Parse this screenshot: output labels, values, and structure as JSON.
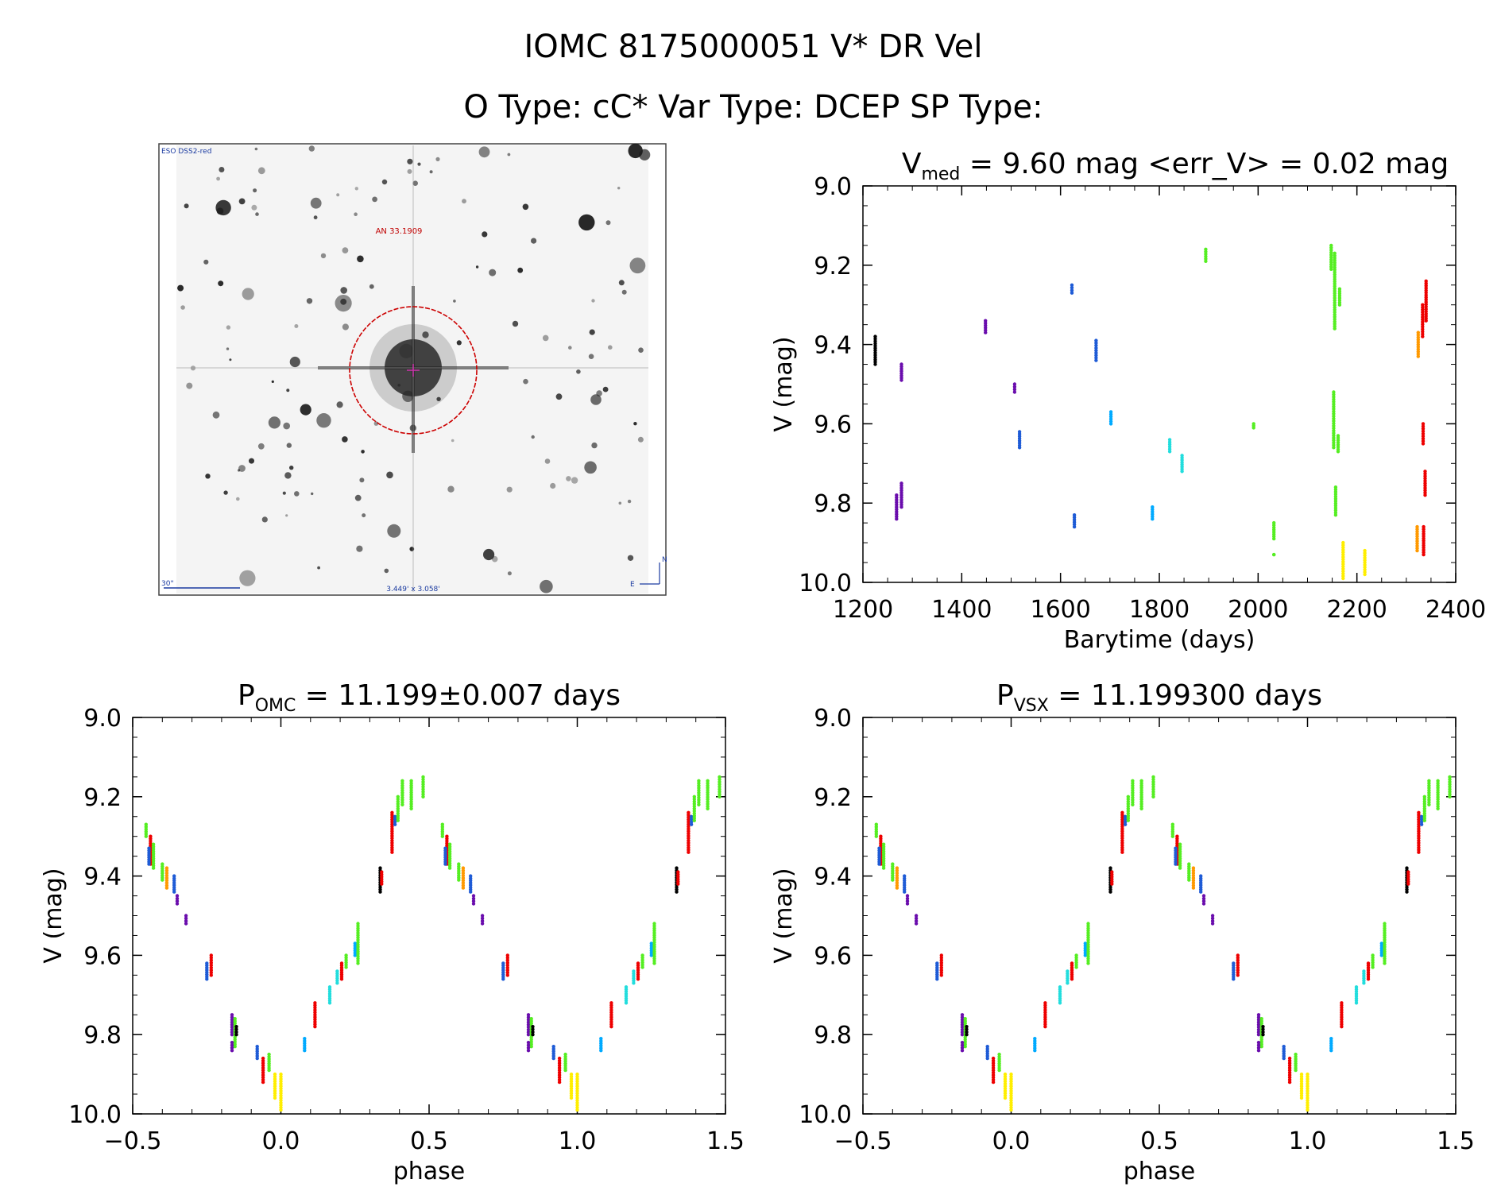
{
  "header": {
    "title": "IOMC 8175000051   V* DR Vel",
    "subtitle": "O Type: cC*  Var Type: DCEP  SP Type:"
  },
  "finder": {
    "survey_label": "ESO DSS2-red",
    "scale_label": "30\"",
    "fov_label": "3.449' x 3.058'",
    "object_label": "AN 33.1909",
    "north_label": "N",
    "east_label": "E"
  },
  "colors": {
    "palette": [
      "#000000",
      "#6a0dad",
      "#1e5bd6",
      "#00aaff",
      "#22dddd",
      "#55ee22",
      "#ee0000",
      "#ff9900",
      "#ffee00"
    ],
    "reticle": "#cc0000"
  },
  "chart_data": [
    {
      "id": "lightcurve",
      "type": "scatter",
      "title_main": "V",
      "title_sub": "med",
      "title_rest": " = 9.60 mag <err_V> = 0.02 mag",
      "xlabel": "Barytime (days)",
      "ylabel": "V (mag)",
      "xlim": [
        1200,
        2400
      ],
      "ylim": [
        10.0,
        9.0
      ],
      "xticks": [
        "1200",
        "1400",
        "1600",
        "1800",
        "2000",
        "2200",
        "2400"
      ],
      "yticks": [
        "9.0",
        "9.2",
        "9.4",
        "9.6",
        "9.8",
        "10.0"
      ],
      "groups": [
        {
          "x": 1225,
          "y": [
            9.38,
            9.45
          ],
          "color": 0
        },
        {
          "x": 1268,
          "y": [
            9.78,
            9.84
          ],
          "color": 1
        },
        {
          "x": 1278,
          "y": [
            9.45,
            9.49
          ],
          "color": 1
        },
        {
          "x": 1278,
          "y": [
            9.75,
            9.81
          ],
          "color": 1
        },
        {
          "x": 1448,
          "y": [
            9.34,
            9.37
          ],
          "color": 1
        },
        {
          "x": 1507,
          "y": [
            9.5,
            9.52
          ],
          "color": 1
        },
        {
          "x": 1517,
          "y": [
            9.62,
            9.66
          ],
          "color": 2
        },
        {
          "x": 1623,
          "y": [
            9.25,
            9.27
          ],
          "color": 2
        },
        {
          "x": 1628,
          "y": [
            9.83,
            9.86
          ],
          "color": 2
        },
        {
          "x": 1672,
          "y": [
            9.39,
            9.44
          ],
          "color": 2
        },
        {
          "x": 1702,
          "y": [
            9.57,
            9.6
          ],
          "color": 3
        },
        {
          "x": 1786,
          "y": [
            9.81,
            9.84
          ],
          "color": 3
        },
        {
          "x": 1821,
          "y": [
            9.64,
            9.67
          ],
          "color": 4
        },
        {
          "x": 1846,
          "y": [
            9.68,
            9.72
          ],
          "color": 4
        },
        {
          "x": 1894,
          "y": [
            9.16,
            9.19
          ],
          "color": 5
        },
        {
          "x": 1991,
          "y": [
            9.6,
            9.61
          ],
          "color": 5
        },
        {
          "x": 2032,
          "y": [
            9.85,
            9.89
          ],
          "color": 5
        },
        {
          "x": 2032,
          "y": [
            9.93,
            9.93
          ],
          "color": 5
        },
        {
          "x": 2148,
          "y": [
            9.15,
            9.21
          ],
          "color": 5
        },
        {
          "x": 2155,
          "y": [
            9.17,
            9.36
          ],
          "color": 5
        },
        {
          "x": 2165,
          "y": [
            9.26,
            9.3
          ],
          "color": 5
        },
        {
          "x": 2153,
          "y": [
            9.52,
            9.66
          ],
          "color": 5
        },
        {
          "x": 2157,
          "y": [
            9.76,
            9.83
          ],
          "color": 5
        },
        {
          "x": 2162,
          "y": [
            9.63,
            9.67
          ],
          "color": 5
        },
        {
          "x": 2172,
          "y": [
            9.9,
            9.99
          ],
          "color": 8
        },
        {
          "x": 2216,
          "y": [
            9.92,
            9.98
          ],
          "color": 8
        },
        {
          "x": 2324,
          "y": [
            9.37,
            9.43
          ],
          "color": 7
        },
        {
          "x": 2322,
          "y": [
            9.86,
            9.92
          ],
          "color": 7
        },
        {
          "x": 2333,
          "y": [
            9.3,
            9.38
          ],
          "color": 6
        },
        {
          "x": 2340,
          "y": [
            9.24,
            9.34
          ],
          "color": 6
        },
        {
          "x": 2334,
          "y": [
            9.6,
            9.65
          ],
          "color": 6
        },
        {
          "x": 2338,
          "y": [
            9.72,
            9.78
          ],
          "color": 6
        },
        {
          "x": 2335,
          "y": [
            9.86,
            9.93
          ],
          "color": 6
        }
      ]
    },
    {
      "id": "phase_omc",
      "type": "scatter",
      "title_main": "P",
      "title_sub": "OMC",
      "title_rest": " = 11.199±0.007 days",
      "xlabel": "phase",
      "ylabel": "V (mag)",
      "xlim": [
        -0.5,
        1.5
      ],
      "ylim": [
        10.0,
        9.0
      ],
      "xticks": [
        "−0.5",
        "0.0",
        "0.5",
        "1.0",
        "1.5"
      ],
      "yticks": [
        "9.0",
        "9.2",
        "9.4",
        "9.6",
        "9.8",
        "10.0"
      ],
      "groups_ref": "phase_groups"
    },
    {
      "id": "phase_vsx",
      "type": "scatter",
      "title_main": "P",
      "title_sub": "VSX",
      "title_rest": " = 11.199300 days",
      "xlabel": "phase",
      "ylabel": "V (mag)",
      "xlim": [
        -0.5,
        1.5
      ],
      "ylim": [
        10.0,
        9.0
      ],
      "xticks": [
        "−0.5",
        "0.0",
        "0.5",
        "1.0",
        "1.5"
      ],
      "yticks": [
        "9.0",
        "9.2",
        "9.4",
        "9.6",
        "9.8",
        "10.0"
      ],
      "groups_ref": "phase_groups"
    }
  ],
  "phase_groups": [
    {
      "x": -0.455,
      "y": [
        9.27,
        9.3
      ],
      "color": 5
    },
    {
      "x": -0.44,
      "y": [
        9.3,
        9.37
      ],
      "color": 6
    },
    {
      "x": -0.445,
      "y": [
        9.33,
        9.37
      ],
      "color": 2
    },
    {
      "x": -0.43,
      "y": [
        9.32,
        9.38
      ],
      "color": 5
    },
    {
      "x": -0.4,
      "y": [
        9.37,
        9.41
      ],
      "color": 5
    },
    {
      "x": -0.385,
      "y": [
        9.38,
        9.43
      ],
      "color": 7
    },
    {
      "x": -0.36,
      "y": [
        9.4,
        9.44
      ],
      "color": 2
    },
    {
      "x": -0.35,
      "y": [
        9.45,
        9.47
      ],
      "color": 1
    },
    {
      "x": -0.32,
      "y": [
        9.5,
        9.52
      ],
      "color": 1
    },
    {
      "x": -0.25,
      "y": [
        9.62,
        9.66
      ],
      "color": 2
    },
    {
      "x": -0.235,
      "y": [
        9.6,
        9.65
      ],
      "color": 6
    },
    {
      "x": -0.165,
      "y": [
        9.75,
        9.8
      ],
      "color": 1
    },
    {
      "x": -0.155,
      "y": [
        9.76,
        9.83
      ],
      "color": 5
    },
    {
      "x": -0.15,
      "y": [
        9.78,
        9.8
      ],
      "color": 0
    },
    {
      "x": -0.165,
      "y": [
        9.82,
        9.84
      ],
      "color": 1
    },
    {
      "x": -0.08,
      "y": [
        9.83,
        9.86
      ],
      "color": 2
    },
    {
      "x": -0.06,
      "y": [
        9.86,
        9.92
      ],
      "color": 6
    },
    {
      "x": -0.04,
      "y": [
        9.85,
        9.89
      ],
      "color": 5
    },
    {
      "x": -0.02,
      "y": [
        9.9,
        9.96
      ],
      "color": 8
    },
    {
      "x": 0.0,
      "y": [
        9.9,
        9.99
      ],
      "color": 8
    },
    {
      "x": 0.08,
      "y": [
        9.81,
        9.84
      ],
      "color": 3
    },
    {
      "x": 0.115,
      "y": [
        9.72,
        9.78
      ],
      "color": 6
    },
    {
      "x": 0.165,
      "y": [
        9.68,
        9.72
      ],
      "color": 4
    },
    {
      "x": 0.19,
      "y": [
        9.64,
        9.67
      ],
      "color": 4
    },
    {
      "x": 0.205,
      "y": [
        9.62,
        9.66
      ],
      "color": 6
    },
    {
      "x": 0.22,
      "y": [
        9.6,
        9.63
      ],
      "color": 5
    },
    {
      "x": 0.25,
      "y": [
        9.57,
        9.6
      ],
      "color": 3
    },
    {
      "x": 0.26,
      "y": [
        9.52,
        9.62
      ],
      "color": 5
    },
    {
      "x": 0.335,
      "y": [
        9.38,
        9.44
      ],
      "color": 0
    },
    {
      "x": 0.34,
      "y": [
        9.39,
        9.42
      ],
      "color": 6
    },
    {
      "x": 0.375,
      "y": [
        9.24,
        9.34
      ],
      "color": 6
    },
    {
      "x": 0.385,
      "y": [
        9.25,
        9.27
      ],
      "color": 2
    },
    {
      "x": 0.395,
      "y": [
        9.2,
        9.26
      ],
      "color": 5
    },
    {
      "x": 0.41,
      "y": [
        9.16,
        9.22
      ],
      "color": 5
    },
    {
      "x": 0.44,
      "y": [
        9.16,
        9.23
      ],
      "color": 5
    },
    {
      "x": 0.48,
      "y": [
        9.15,
        9.2
      ],
      "color": 5
    }
  ]
}
